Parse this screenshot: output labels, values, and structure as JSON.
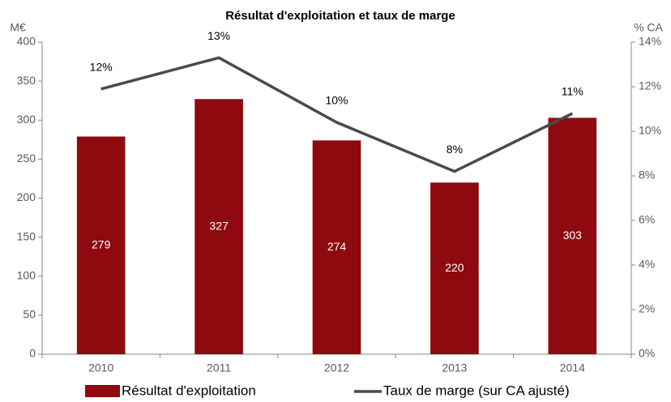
{
  "chart_data": {
    "type": "bar",
    "title": "Résultat d'exploitation et taux de marge",
    "ylabel": "M€",
    "y2label": "% CA",
    "categories": [
      "2010",
      "2011",
      "2012",
      "2013",
      "2014"
    ],
    "series": [
      {
        "name": "Résultat d'exploitation",
        "type": "bar",
        "color": "#8e0a0e",
        "values": [
          279,
          327,
          274,
          220,
          303
        ]
      },
      {
        "name": "Taux de marge (sur CA ajusté)",
        "type": "line",
        "axis": "y2",
        "color": "#474b4d",
        "values": [
          11.9,
          13.3,
          10.4,
          8.2,
          10.8
        ],
        "value_labels": [
          "12%",
          "13%",
          "10%",
          "8%",
          "11%"
        ]
      }
    ],
    "ylim": [
      0,
      400
    ],
    "yticks": [
      0,
      50,
      100,
      150,
      200,
      250,
      300,
      350,
      400
    ],
    "y2lim": [
      0,
      14
    ],
    "y2ticks": [
      {
        "value": 0,
        "label": "0%"
      },
      {
        "value": 2,
        "label": "2%"
      },
      {
        "value": 4,
        "label": "4%"
      },
      {
        "value": 6,
        "label": "6%"
      },
      {
        "value": 8,
        "label": "8%"
      },
      {
        "value": 10,
        "label": "10%"
      },
      {
        "value": 12,
        "label": "12%"
      },
      {
        "value": 14,
        "label": "14%"
      }
    ],
    "grid": false,
    "legend": "bottom"
  }
}
